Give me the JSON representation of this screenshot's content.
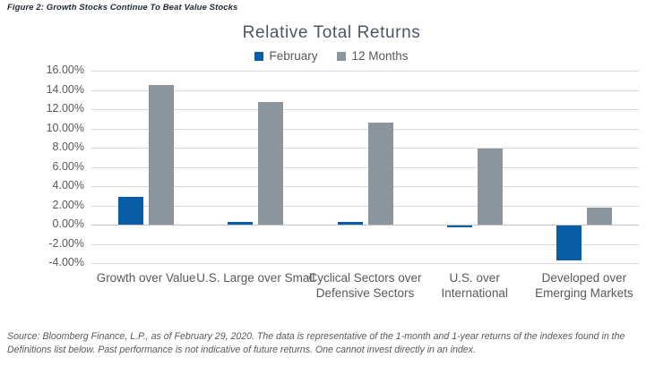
{
  "figure_caption": "Figure 2: Growth Stocks Continue To Beat Value Stocks",
  "chart_data": {
    "type": "bar",
    "title": "Relative Total Returns",
    "categories": [
      "Growth over Value",
      "U.S. Large over Small",
      "Cyclical Sectors over Defensive Sectors",
      "U.S. over International",
      "Developed over Emerging Markets"
    ],
    "series": [
      {
        "name": "February",
        "color": "#0a5da4",
        "values": [
          2.9,
          0.3,
          0.3,
          -0.2,
          -3.6
        ]
      },
      {
        "name": "12 Months",
        "color": "#8c959b",
        "values": [
          14.5,
          12.7,
          10.6,
          7.9,
          1.8
        ]
      }
    ],
    "ylabel": "",
    "xlabel": "",
    "ylim": [
      -4,
      16
    ],
    "y_ticks": [
      {
        "value": 16,
        "label": "16.00%"
      },
      {
        "value": 14,
        "label": "14.00%"
      },
      {
        "value": 12,
        "label": "12.00%"
      },
      {
        "value": 10,
        "label": "10.00%"
      },
      {
        "value": 8,
        "label": "8.00%"
      },
      {
        "value": 6,
        "label": "6.00%"
      },
      {
        "value": 4,
        "label": "4.00%"
      },
      {
        "value": 2,
        "label": "2.00%"
      },
      {
        "value": 0,
        "label": "0.00%"
      },
      {
        "value": -2,
        "label": "-2.00%"
      },
      {
        "value": -4,
        "label": "-4.00%"
      }
    ],
    "grid": true,
    "legend_position": "top"
  },
  "source_note": "Source: Bloomberg Finance, L.P., as of February 29, 2020. The data is representative of the 1-month and 1-year returns of the indexes found in the Definitions list below. Past performance is not indicative of future returns. One cannot invest directly in an index."
}
